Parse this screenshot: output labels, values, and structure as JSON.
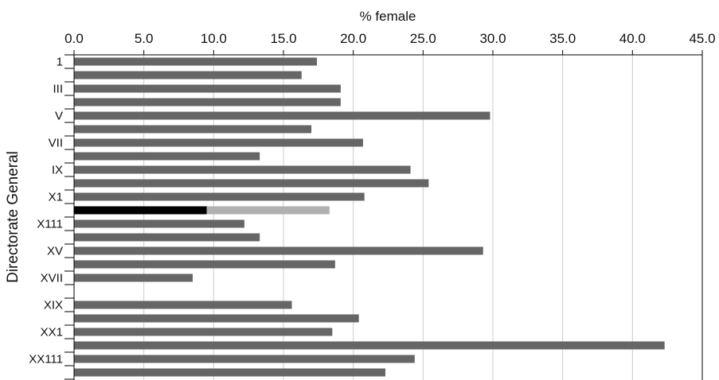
{
  "chart_data": {
    "type": "bar",
    "orientation": "horizontal",
    "title": "",
    "xlabel": "% female",
    "ylabel": "Directorate General",
    "xlim": [
      0,
      45
    ],
    "x_ticks": [
      "0.0",
      "5.0",
      "10.0",
      "15.0",
      "20.0",
      "25.0",
      "30.0",
      "35.0",
      "40.0",
      "45.0"
    ],
    "x_axis_position": "top",
    "grid": "vertical",
    "legend": "none",
    "y_tick_labels": [
      "1",
      "III",
      "V",
      "VII",
      "IX",
      "X1",
      "X111",
      "XV",
      "XVII",
      "XIX",
      "XX1",
      "XX111"
    ],
    "y_tick_label_rows": [
      0,
      2,
      4,
      6,
      8,
      10,
      12,
      14,
      16,
      18,
      20,
      22
    ],
    "bar_count": 24,
    "values": [
      17.4,
      16.3,
      19.1,
      19.1,
      29.8,
      17.0,
      20.7,
      13.3,
      24.1,
      25.4,
      20.8,
      18.3,
      12.2,
      13.3,
      29.3,
      18.7,
      8.5,
      null,
      15.6,
      20.4,
      18.5,
      42.3,
      24.4,
      22.3
    ],
    "highlight": {
      "row": 11,
      "dark_value": 9.5,
      "light_value": 18.3
    },
    "colors": {
      "bar": "#666666",
      "highlight_dark": "#000000",
      "highlight_light": "#b0b0b0",
      "grid": "#cccccc",
      "axis": "#000000"
    }
  }
}
